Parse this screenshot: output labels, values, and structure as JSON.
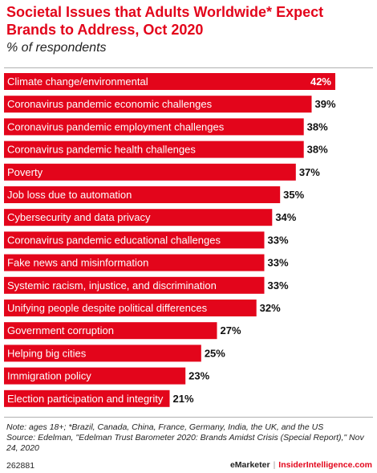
{
  "header": {
    "title": "Societal Issues that Adults Worldwide* Expect Brands to Address, Oct 2020",
    "subtitle": "% of respondents"
  },
  "chart_data": {
    "type": "bar",
    "orientation": "horizontal",
    "categories": [
      "Climate change/environmental",
      "Coronavirus pandemic economic challenges",
      "Coronavirus pandemic employment challenges",
      "Coronavirus pandemic health challenges",
      "Poverty",
      "Job loss due to automation",
      "Cybersecurity and data privacy",
      "Coronavirus pandemic educational challenges",
      "Fake news and misinformation",
      "Systemic racism, injustice, and discrimination",
      "Unifying people despite political differences",
      "Government corruption",
      "Helping big cities",
      "Immigration policy",
      "Election participation and integrity"
    ],
    "values": [
      42,
      39,
      38,
      38,
      37,
      35,
      34,
      33,
      33,
      33,
      32,
      27,
      25,
      23,
      21
    ],
    "value_labels": [
      "42%",
      "39%",
      "38%",
      "38%",
      "37%",
      "35%",
      "34%",
      "33%",
      "33%",
      "33%",
      "32%",
      "27%",
      "25%",
      "23%",
      "21%"
    ],
    "xlim": [
      0,
      42
    ],
    "bar_color": "#e3051b",
    "grid": false,
    "legend": "none"
  },
  "footer": {
    "note": "Note: ages 18+; *Brazil, Canada, China, France, Germany, India, the UK, and the US",
    "source": "Source: Edelman, \"Edelman Trust Barometer 2020: Brands Amidst Crisis (Special Report),\" Nov 24, 2020",
    "chart_id": "262881",
    "brand": "eMarketer",
    "separator": "|",
    "site": "InsiderIntelligence.com"
  }
}
